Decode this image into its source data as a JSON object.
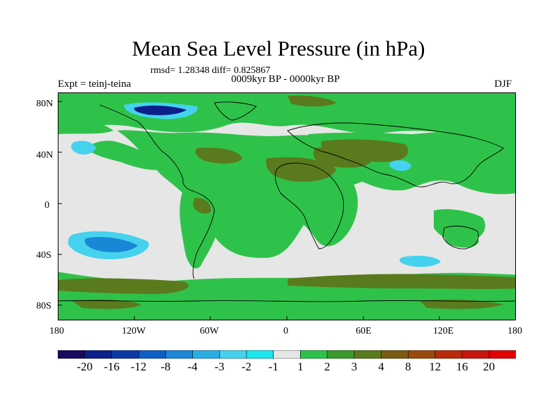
{
  "title": "Mean Sea Level Pressure (in hPa)",
  "stats": "rmsd= 1.28348 diff= 0.825867",
  "subtitle": "0009kyr BP - 0000kyr BP",
  "left_label": "Expt = teinj-teina",
  "right_label": "DJF",
  "lat_labels": [
    "80N",
    "40N",
    "0",
    "40S",
    "80S"
  ],
  "lon_labels": [
    "180",
    "120W",
    "60W",
    "0",
    "60E",
    "120E",
    "180"
  ],
  "colorbar": {
    "labels": [
      "-20",
      "-16",
      "-12",
      "-8",
      "-4",
      "-3",
      "-2",
      "-1",
      "1",
      "2",
      "3",
      "4",
      "8",
      "12",
      "16",
      "20"
    ],
    "colors": [
      "#1a0a5e",
      "#0c1f8a",
      "#0b3aa5",
      "#0d5ec8",
      "#1a86d6",
      "#2aaee6",
      "#44d2ee",
      "#1ee6f0",
      "#e6e6e6",
      "#2fc24a",
      "#3a9a2a",
      "#5a7a1e",
      "#7a5a14",
      "#9a4a0e",
      "#b82a0a",
      "#c8140a",
      "#e00000"
    ]
  },
  "chart_data": {
    "type": "map-contour",
    "variable": "Mean Sea Level Pressure",
    "units": "hPa",
    "difference": "0009kyr BP - 0000kyr BP",
    "experiment": "teinj-teina",
    "season": "DJF",
    "rmsd": 1.28348,
    "diff": 0.825867,
    "levels": [
      -20,
      -16,
      -12,
      -8,
      -4,
      -3,
      -2,
      -1,
      1,
      2,
      3,
      4,
      8,
      12,
      16,
      20
    ],
    "lon_range": [
      -180,
      180
    ],
    "lat_range": [
      -90,
      90
    ]
  }
}
